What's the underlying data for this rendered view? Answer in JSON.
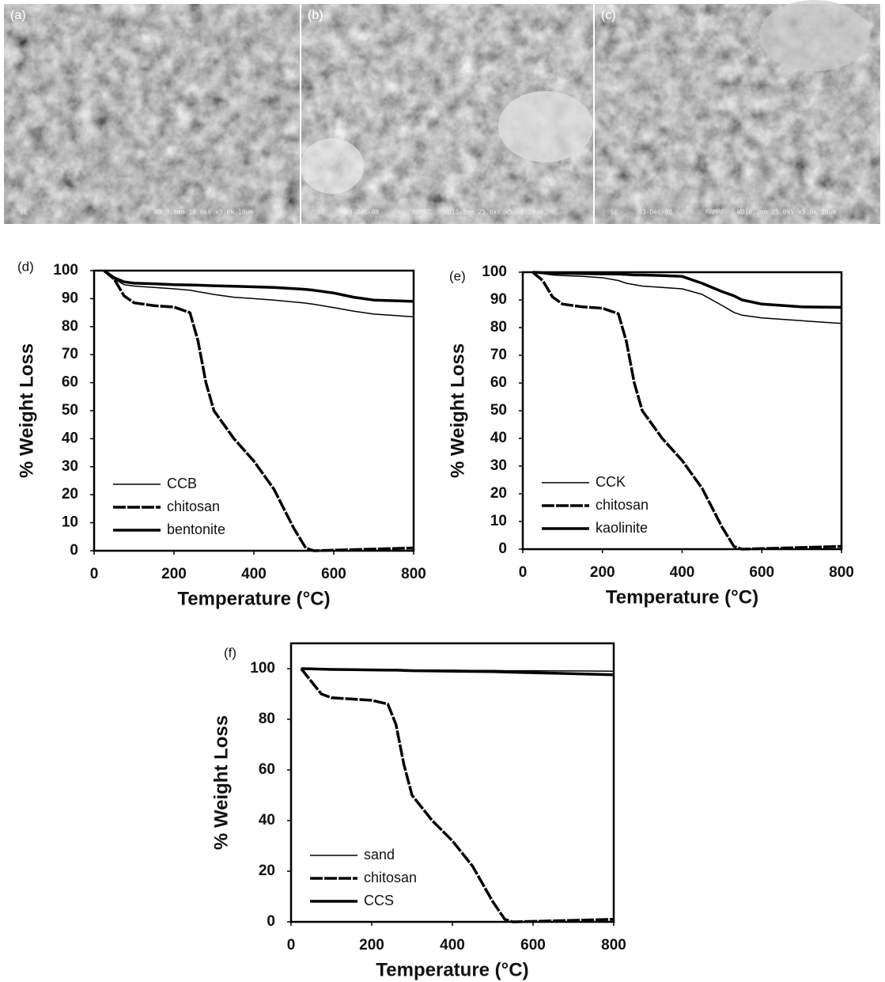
{
  "images": [
    {
      "label": "(a)",
      "info": [
        "SE",
        "WD 9.6mm 10.0kV x5.0k 10um"
      ]
    },
    {
      "label": "(b)",
      "info": [
        "SE",
        "03-Dec-08",
        "RRMRC",
        "WD15.3mm 25.0kV x5.0k 10um"
      ]
    },
    {
      "label": "(c)",
      "info": [
        "SE",
        "03-Dec-08",
        "RRMRC",
        "WD16.2mm 25.0kV x5.0k 10um"
      ]
    }
  ],
  "chart_data": [
    {
      "type": "line",
      "panel_label": "(d)",
      "x_label": "Temperature (°C)",
      "y_label": "% Weight Loss",
      "x": [
        25,
        50,
        75,
        100,
        150,
        200,
        240,
        260,
        280,
        300,
        350,
        400,
        450,
        500,
        530,
        550,
        600,
        650,
        700,
        800
      ],
      "xlim": [
        0,
        800
      ],
      "xticks": [
        0,
        200,
        400,
        600,
        800
      ],
      "ylim": [
        0,
        100
      ],
      "yticks": [
        0,
        10,
        20,
        30,
        40,
        50,
        60,
        70,
        80,
        90,
        100
      ],
      "legend": "lower left",
      "series": [
        {
          "name": "CCB",
          "color": "#000000",
          "style": "thin",
          "values": [
            100,
            97,
            95,
            94.5,
            94,
            93.5,
            93,
            92.5,
            92,
            91.5,
            90.5,
            90,
            89.5,
            88.8,
            88.4,
            88,
            86.8,
            85.5,
            84.5,
            83.5
          ]
        },
        {
          "name": "chitosan",
          "color": "#000000",
          "style": "dashed",
          "values": [
            100,
            97,
            91,
            88.5,
            87.5,
            87,
            85,
            75,
            60,
            50,
            40,
            32,
            22,
            8,
            1,
            0,
            0.2,
            0.4,
            0.6,
            1
          ]
        },
        {
          "name": "bentonite",
          "color": "#000000",
          "style": "thick",
          "values": [
            100,
            97.5,
            96,
            95.5,
            95.3,
            95,
            94.9,
            94.8,
            94.7,
            94.6,
            94.4,
            94.2,
            94,
            93.6,
            93.3,
            93,
            92,
            90.5,
            89.5,
            89
          ]
        }
      ]
    },
    {
      "type": "line",
      "panel_label": "(e)",
      "x_label": "Temperature (°C)",
      "y_label": "% Weight Loss",
      "x": [
        25,
        50,
        75,
        100,
        150,
        200,
        240,
        260,
        280,
        300,
        350,
        400,
        450,
        500,
        530,
        550,
        600,
        650,
        700,
        800
      ],
      "xlim": [
        0,
        800
      ],
      "xticks": [
        0,
        200,
        400,
        600,
        800
      ],
      "ylim": [
        0,
        100
      ],
      "yticks": [
        0,
        10,
        20,
        30,
        40,
        50,
        60,
        70,
        80,
        90,
        100
      ],
      "legend": "lower left",
      "series": [
        {
          "name": "CCK",
          "color": "#000000",
          "style": "thin",
          "values": [
            100,
            99.5,
            99,
            98.8,
            98.5,
            98,
            97,
            96,
            95.5,
            95,
            94.5,
            94,
            92,
            88,
            85.5,
            84.5,
            83.5,
            83,
            82.5,
            81.5
          ]
        },
        {
          "name": "chitosan",
          "color": "#000000",
          "style": "dashed",
          "values": [
            100,
            97,
            91,
            88.5,
            87.5,
            87,
            85,
            75,
            60,
            50,
            40,
            32,
            22,
            8,
            1,
            0,
            0.2,
            0.4,
            0.6,
            1
          ]
        },
        {
          "name": "kaolinite",
          "color": "#000000",
          "style": "thick",
          "values": [
            100,
            99.8,
            99.7,
            99.6,
            99.5,
            99.4,
            99.3,
            99.2,
            99,
            99,
            98.8,
            98.5,
            96,
            93,
            91.5,
            90,
            88.5,
            88,
            87.5,
            87.3
          ]
        }
      ]
    },
    {
      "type": "line",
      "panel_label": "(f)",
      "x_label": "Temperature (°C)",
      "y_label": "% Weight Loss",
      "x": [
        25,
        50,
        75,
        100,
        150,
        200,
        240,
        260,
        280,
        300,
        350,
        400,
        450,
        500,
        530,
        550,
        600,
        650,
        700,
        800
      ],
      "xlim": [
        0,
        800
      ],
      "xticks": [
        0,
        200,
        400,
        600,
        800
      ],
      "ylim": [
        0,
        110
      ],
      "yticks": [
        0,
        20,
        40,
        60,
        80,
        100
      ],
      "legend": "lower left",
      "series": [
        {
          "name": "sand",
          "color": "#000000",
          "style": "thin",
          "values": [
            100,
            100,
            99.9,
            99.9,
            99.8,
            99.7,
            99.6,
            99.6,
            99.5,
            99.5,
            99.4,
            99.4,
            99.3,
            99.3,
            99.2,
            99.2,
            99.2,
            99.1,
            99.1,
            99
          ]
        },
        {
          "name": "chitosan",
          "color": "#000000",
          "style": "dashed",
          "values": [
            100,
            95,
            90,
            88.5,
            88,
            87.5,
            86,
            78,
            62,
            50,
            40,
            32,
            22,
            8,
            1,
            0,
            0.2,
            0.4,
            0.6,
            1
          ]
        },
        {
          "name": "CCS",
          "color": "#000000",
          "style": "thick",
          "values": [
            100,
            99.9,
            99.8,
            99.7,
            99.6,
            99.5,
            99.4,
            99.4,
            99.3,
            99.2,
            99.1,
            99,
            98.9,
            98.8,
            98.7,
            98.6,
            98.4,
            98.2,
            98,
            97.6
          ]
        }
      ]
    }
  ]
}
